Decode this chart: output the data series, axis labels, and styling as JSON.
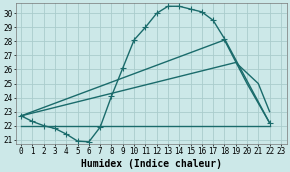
{
  "xlabel": "Humidex (Indice chaleur)",
  "background_color": "#cce8e8",
  "grid_color": "#aacccc",
  "line_color": "#1a6b6b",
  "xlim": [
    -0.5,
    23.5
  ],
  "ylim": [
    20.7,
    30.7
  ],
  "yticks": [
    21,
    22,
    23,
    24,
    25,
    26,
    27,
    28,
    29,
    30
  ],
  "xticks": [
    0,
    1,
    2,
    3,
    4,
    5,
    6,
    7,
    8,
    9,
    10,
    11,
    12,
    13,
    14,
    15,
    16,
    17,
    18,
    19,
    20,
    21,
    22,
    23
  ],
  "curve1_x": [
    0,
    1,
    2,
    3,
    4,
    5,
    6,
    7,
    8,
    9,
    10,
    11,
    12,
    13,
    14,
    15,
    16,
    17,
    18,
    22
  ],
  "curve1_y": [
    22.7,
    22.3,
    22.0,
    21.8,
    21.4,
    20.9,
    20.85,
    21.9,
    24.1,
    26.1,
    28.1,
    29.0,
    30.0,
    30.5,
    30.5,
    30.3,
    30.1,
    29.5,
    28.2,
    22.2
  ],
  "line2_x": [
    0,
    18,
    20,
    22
  ],
  "line2_y": [
    22.7,
    28.1,
    25.0,
    22.2
  ],
  "line3_x": [
    0,
    19,
    21,
    22
  ],
  "line3_y": [
    22.7,
    26.5,
    25.0,
    23.0
  ],
  "line4_x": [
    0,
    22
  ],
  "line4_y": [
    22.0,
    22.0
  ],
  "line_width": 1.0,
  "marker_size": 4,
  "font_size_ticks": 5.5,
  "font_size_xlabel": 7.0
}
